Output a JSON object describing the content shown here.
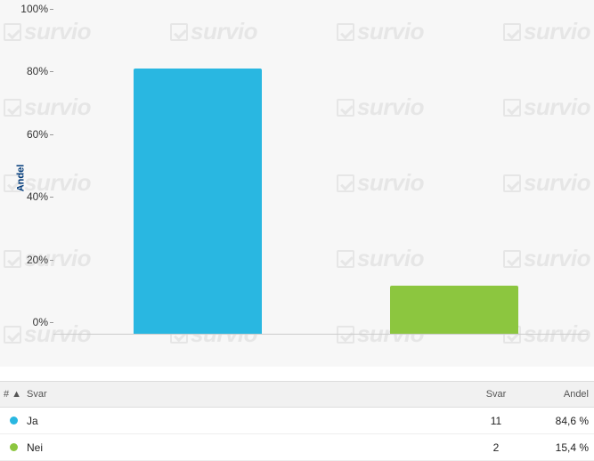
{
  "chart": {
    "type": "bar",
    "background_color": "#f7f7f7",
    "yaxis_label": "Andel",
    "yaxis_label_color": "#003a7a",
    "ylim_max": 100,
    "ytick_step": 20,
    "yticks": [
      {
        "value": 0,
        "label": "0%"
      },
      {
        "value": 20,
        "label": "20%"
      },
      {
        "value": 40,
        "label": "40%"
      },
      {
        "value": 60,
        "label": "60%"
      },
      {
        "value": 80,
        "label": "80%"
      },
      {
        "value": 100,
        "label": "100%"
      }
    ],
    "bar_width_pct": 24,
    "bars": [
      {
        "label": "Ja",
        "value": 84.6,
        "color": "#29b7e1",
        "x_pct": 15
      },
      {
        "label": "Nei",
        "value": 15.4,
        "color": "#8cc63f",
        "x_pct": 63
      }
    ],
    "watermark_text": "survio",
    "watermark_color": "#888888"
  },
  "table": {
    "headers": {
      "num": "# ▲",
      "answer": "Svar",
      "count": "Svar",
      "share": "Andel"
    },
    "rows": [
      {
        "color": "#29b7e1",
        "label": "Ja",
        "count": "11",
        "pct": "84,6 %"
      },
      {
        "color": "#8cc63f",
        "label": "Nei",
        "count": "2",
        "pct": "15,4 %"
      }
    ]
  }
}
